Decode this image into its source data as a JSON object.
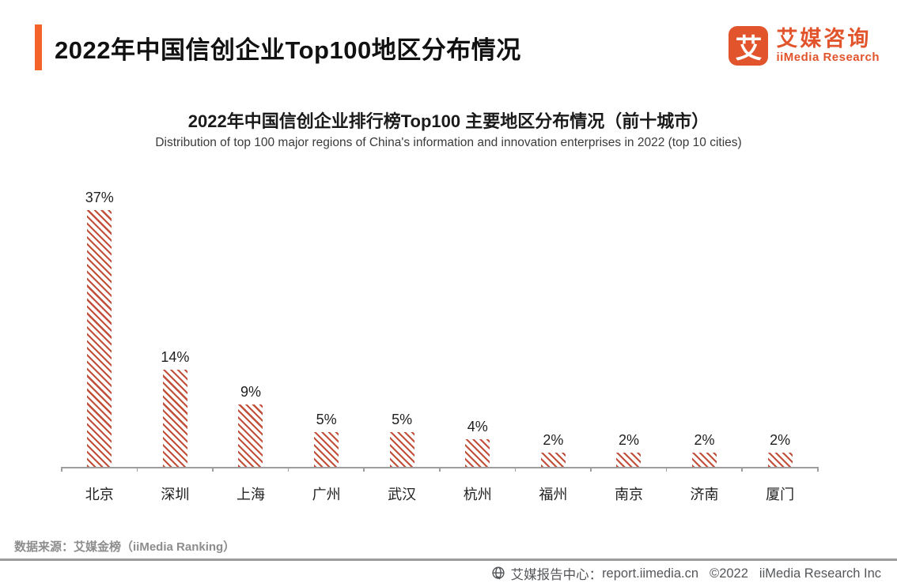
{
  "colors": {
    "accent_orange": "#F4632A",
    "logo_orange": "#E2542C",
    "bar_stripe": "#C14F3A",
    "axis_gray": "#9E9E9E"
  },
  "header": {
    "title": "2022年中国信创企业Top100地区分布情况",
    "logo": {
      "mark_glyph": "艾",
      "name_cn": "艾媒咨询",
      "name_en": "iiMedia Research"
    }
  },
  "chart_data": {
    "type": "bar",
    "title": "2022年中国信创企业排行榜Top100 主要地区分布情况（前十城市）",
    "subtitle": "Distribution of top 100 major regions of China's information and innovation enterprises in 2022 (top 10 cities)",
    "categories": [
      "北京",
      "深圳",
      "上海",
      "广州",
      "武汉",
      "杭州",
      "福州",
      "南京",
      "济南",
      "厦门"
    ],
    "values": [
      37,
      14,
      9,
      5,
      5,
      4,
      2,
      2,
      2,
      2
    ],
    "value_labels": [
      "37%",
      "14%",
      "9%",
      "5%",
      "5%",
      "4%",
      "2%",
      "2%",
      "2%",
      "2%"
    ],
    "unit": "%",
    "ylim": [
      0,
      40
    ],
    "xlabel": "",
    "ylabel": "",
    "grid": false,
    "legend": "none",
    "bar_style": "diagonal-hatch",
    "bar_color": "#C14F3A"
  },
  "footer": {
    "source": "数据来源：艾媒金榜（iiMedia Ranking）",
    "report_center_label": "艾媒报告中心：",
    "report_center_url": "report.iimedia.cn",
    "copyright": "©2022",
    "company": "iiMedia Research Inc"
  }
}
